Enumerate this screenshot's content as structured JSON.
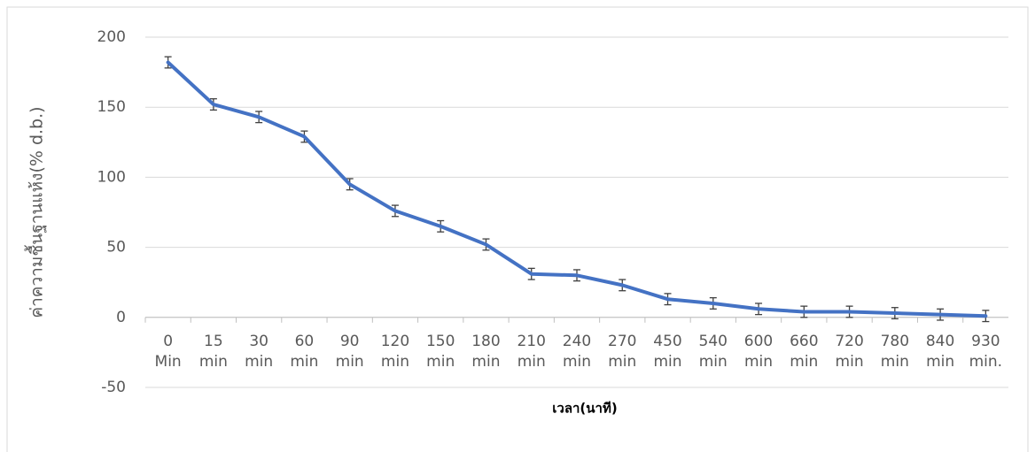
{
  "chart_data": {
    "type": "line",
    "x_label": "เวลา(นาที)",
    "y_label": "ค่าความชื้นฐานแห้ง(% d.b.)",
    "categories": [
      "0 Min",
      "15 min",
      "30 min",
      "60 min",
      "90 min",
      "120 min",
      "150 min",
      "180 min",
      "210 min",
      "240 min",
      "270 min",
      "450 min",
      "540 min",
      "600 min",
      "660 min",
      "720 min",
      "780 min",
      "840 min",
      "930 min."
    ],
    "values": [
      182,
      152,
      143,
      129,
      95,
      76,
      65,
      52,
      31,
      30,
      23,
      13,
      10,
      6,
      4,
      4,
      3,
      2,
      1
    ],
    "errors": [
      4,
      4,
      4,
      4,
      4,
      4,
      4,
      4,
      4,
      4,
      4,
      4,
      4,
      4,
      4,
      4,
      4,
      4,
      4
    ],
    "color": "#4472c4",
    "ylim": [
      -50,
      200
    ],
    "yticks": [
      -50,
      0,
      50,
      100,
      150,
      200
    ],
    "grid": true
  }
}
